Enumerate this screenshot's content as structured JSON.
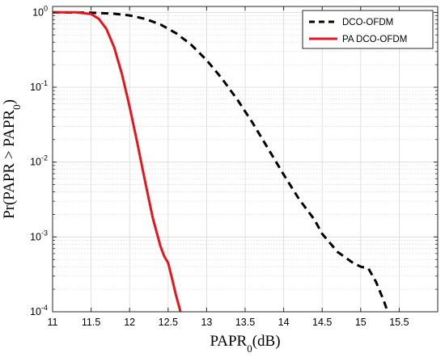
{
  "chart_data": {
    "type": "line",
    "title": "",
    "xlabel": "PAPR0(dB)",
    "ylabel": "Pr(PAPR > PAPR0)",
    "xlabel_parts": {
      "main": "PAPR",
      "sub": "0",
      "tail": "(dB)"
    },
    "ylabel_parts": {
      "pre": "Pr(PAPR > PAPR",
      "sub": "0",
      "post": ")"
    },
    "xlim": [
      11,
      16
    ],
    "ylim": [
      0.0001,
      1.2
    ],
    "yscale": "log",
    "grid": true,
    "minor_grid": true,
    "legend_position": "top-right",
    "xticks": [
      11,
      11.5,
      12,
      12.5,
      13,
      13.5,
      14,
      14.5,
      15,
      15.5
    ],
    "xtick_labels": [
      "11",
      "11.5",
      "12",
      "12.5",
      "13",
      "13.5",
      "14",
      "14.5",
      "15",
      "15.5"
    ],
    "yticks": [
      0.0001,
      0.001,
      0.01,
      0.1,
      1
    ],
    "ytick_labels": [
      {
        "base": "10",
        "exp": "-4"
      },
      {
        "base": "10",
        "exp": "-3"
      },
      {
        "base": "10",
        "exp": "-2"
      },
      {
        "base": "10",
        "exp": "-1"
      },
      {
        "base": "10",
        "exp": "0"
      }
    ],
    "series": [
      {
        "name": "DCO-OFDM",
        "color": "#000000",
        "style": "dashed",
        "x": [
          11.0,
          11.5,
          11.8,
          12.0,
          12.2,
          12.4,
          12.6,
          12.8,
          13.0,
          13.2,
          13.4,
          13.6,
          13.8,
          14.0,
          14.2,
          14.4,
          14.5,
          14.7,
          14.9,
          15.0,
          15.1,
          15.2,
          15.3,
          15.35
        ],
        "y": [
          1.0,
          0.99,
          0.96,
          0.91,
          0.82,
          0.69,
          0.53,
          0.37,
          0.23,
          0.13,
          0.068,
          0.033,
          0.015,
          0.0068,
          0.0032,
          0.0017,
          0.0011,
          0.00063,
          0.00045,
          0.0004,
          0.00038,
          0.00025,
          0.00014,
          0.0001
        ]
      },
      {
        "name": "PA DCO-OFDM",
        "color": "#e8141c",
        "style": "solid",
        "x": [
          11.0,
          11.3,
          11.5,
          11.6,
          11.7,
          11.8,
          11.9,
          12.0,
          12.1,
          12.2,
          12.3,
          12.4,
          12.45,
          12.5,
          12.55,
          12.6,
          12.65,
          12.66
        ],
        "y": [
          1.0,
          1.0,
          0.95,
          0.82,
          0.6,
          0.34,
          0.15,
          0.055,
          0.018,
          0.0056,
          0.0018,
          0.00075,
          0.00055,
          0.00045,
          0.00028,
          0.00017,
          0.00011,
          0.0001
        ]
      }
    ]
  }
}
